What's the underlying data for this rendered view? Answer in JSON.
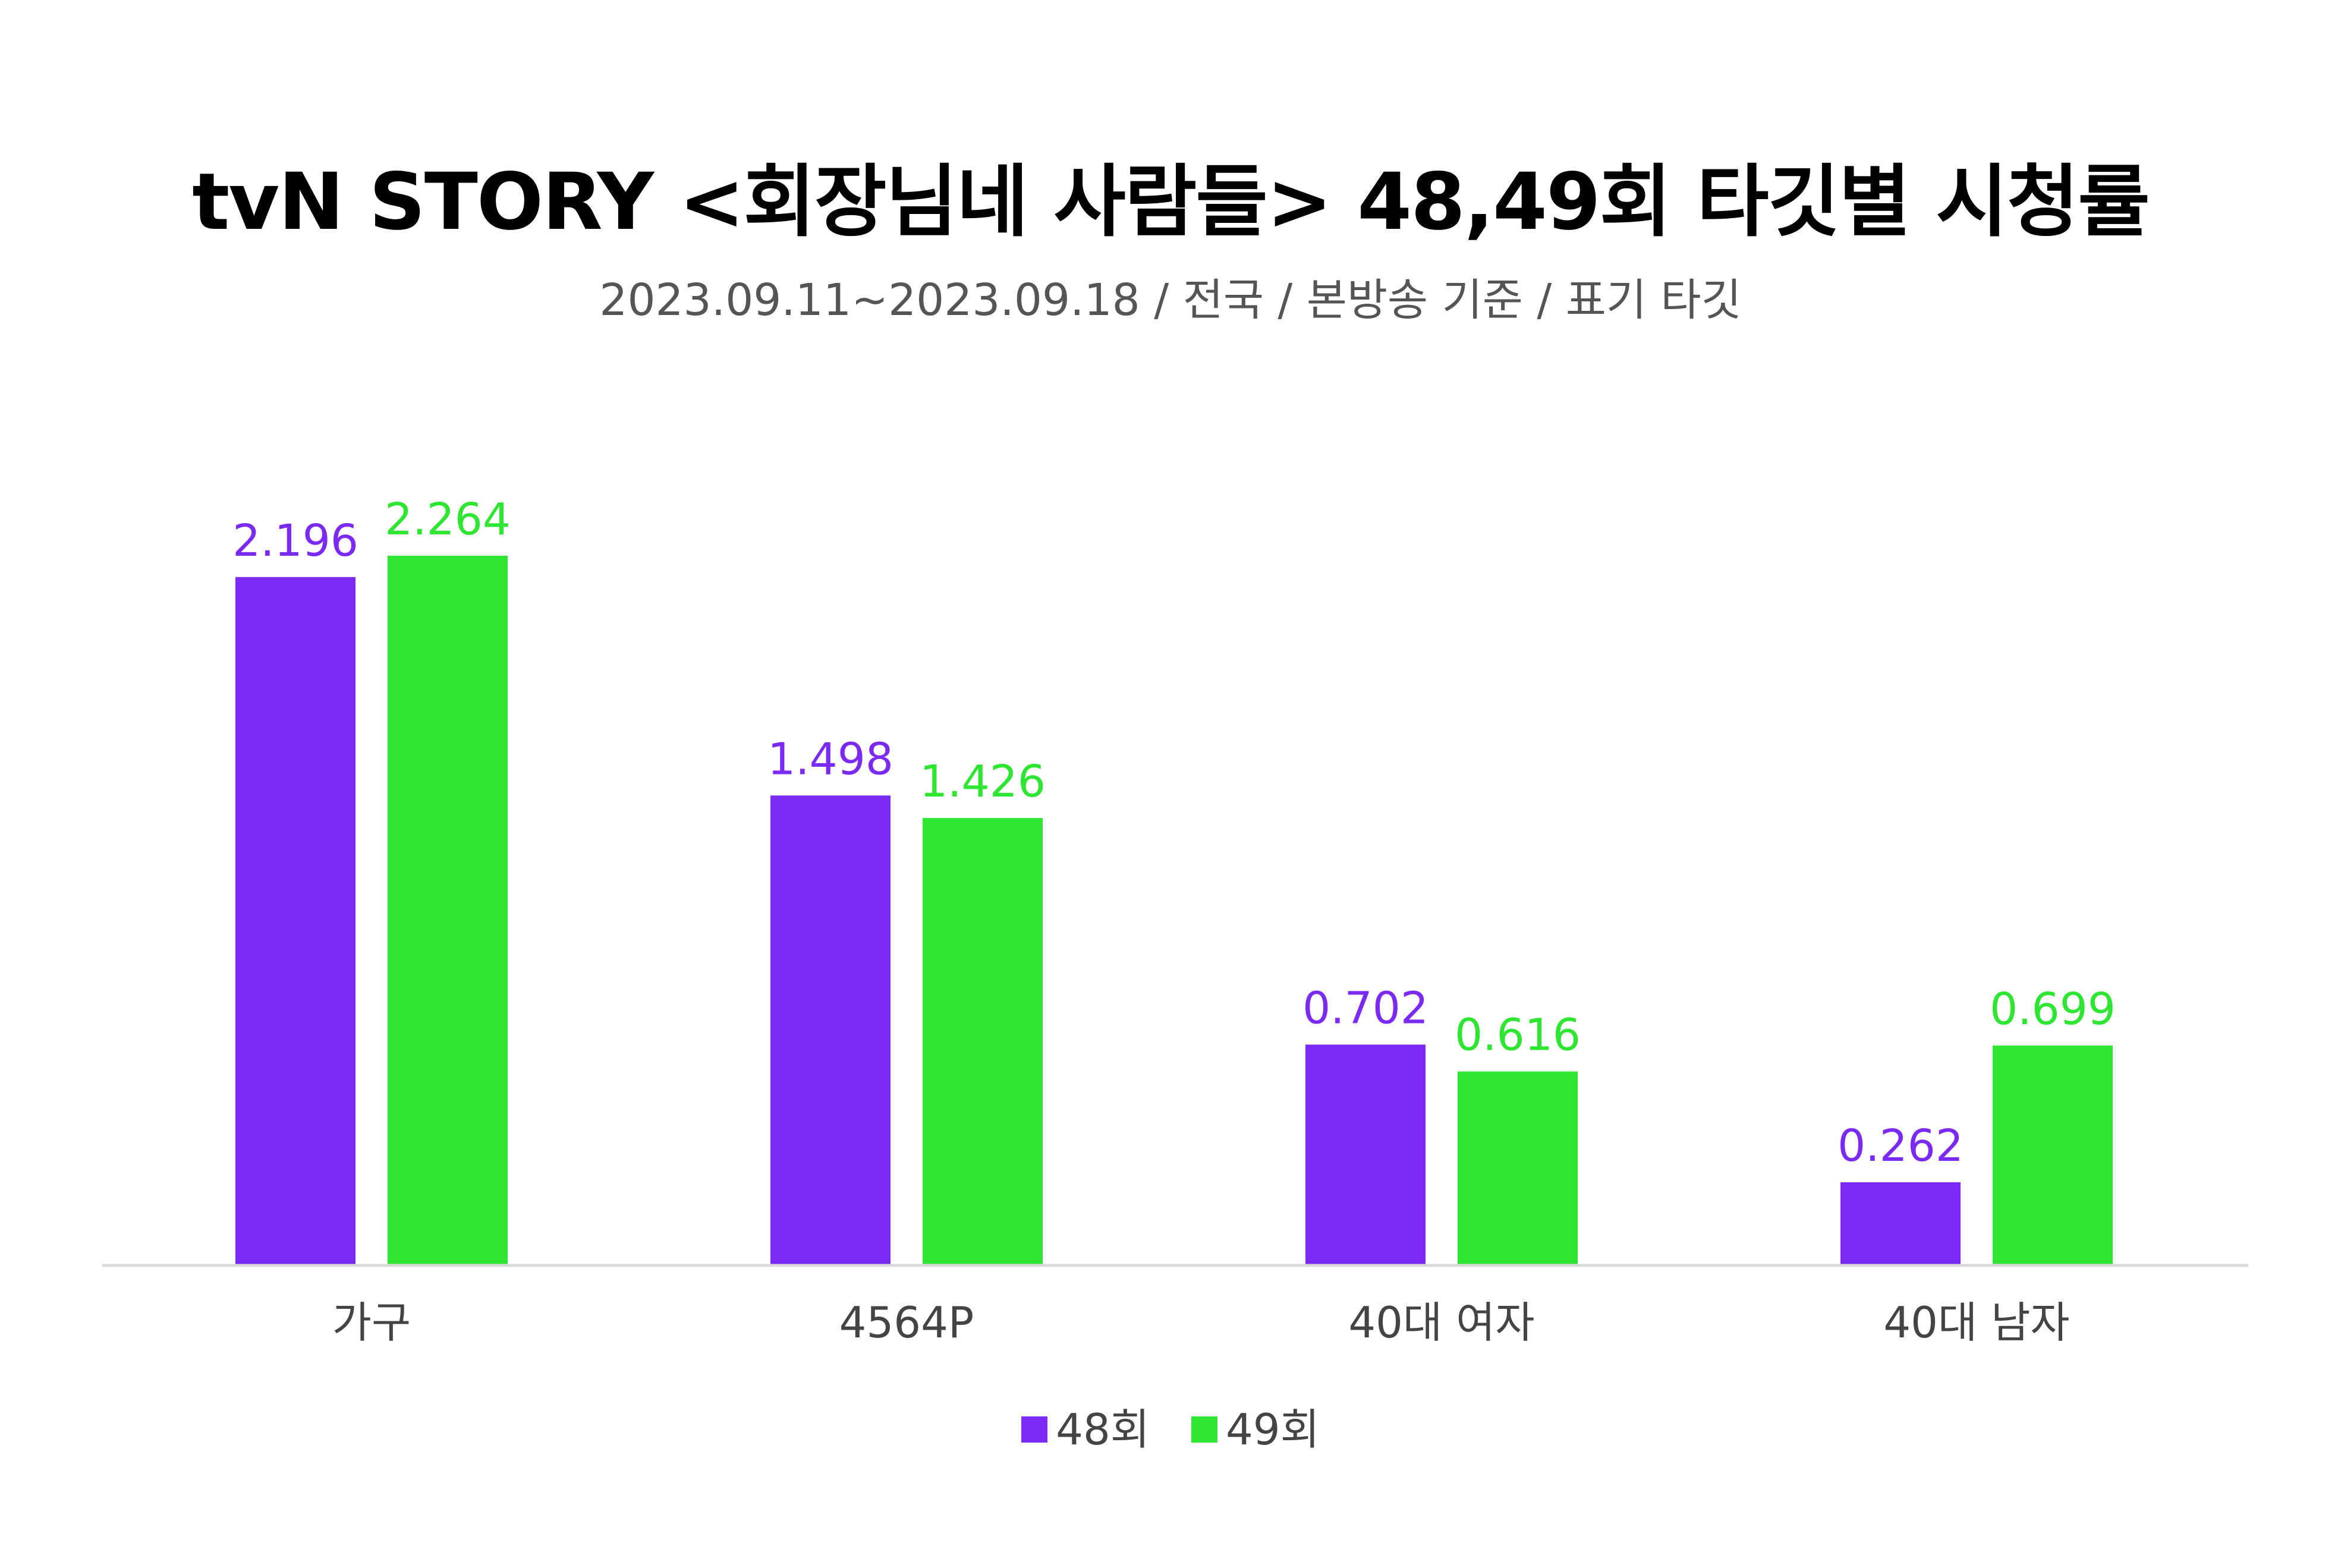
{
  "title": "tvN STORY <회장님네 사람들> 48,49회 타깃별 시청률",
  "subtitle": "2023.09.11~2023.09.18 / 전국 / 본방송 기준 / 표기 타깃",
  "colors": {
    "series_48": "#7B2AF5",
    "series_49": "#2EE532",
    "axis": "#D9D9D9",
    "category_text": "#444444"
  },
  "chart_data": {
    "type": "bar",
    "categories": [
      "가구",
      "4564P",
      "40대 여자",
      "40대 남자"
    ],
    "series": [
      {
        "name": "48회",
        "values": [
          2.196,
          1.498,
          0.702,
          0.262
        ],
        "labels": [
          "2.196",
          "1.498",
          "0.702",
          "0.262"
        ]
      },
      {
        "name": "49회",
        "values": [
          2.264,
          1.426,
          0.616,
          0.699
        ],
        "labels": [
          "2.264",
          "1.426",
          "0.616",
          "0.699"
        ]
      }
    ],
    "ylim": [
      0,
      2.264
    ],
    "grid": false,
    "legend": "bottom-center",
    "data_labels": true
  }
}
